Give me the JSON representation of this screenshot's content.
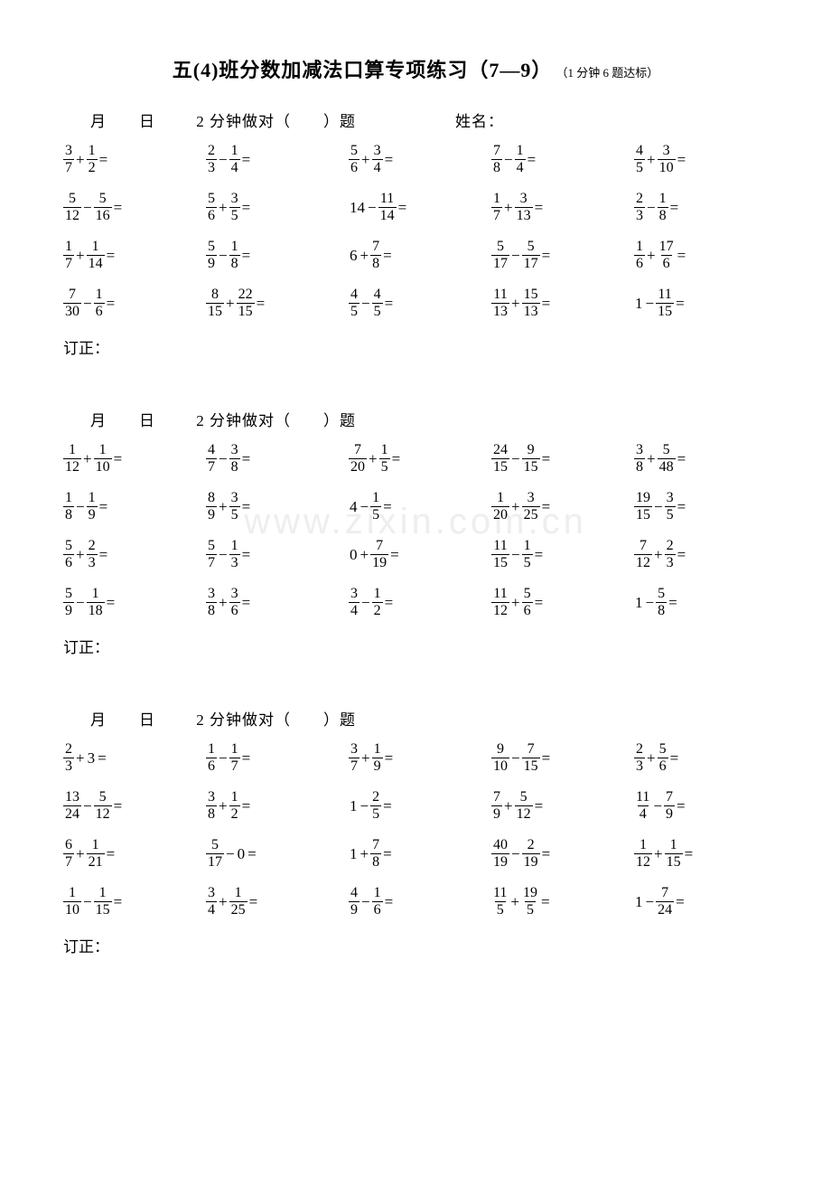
{
  "title_main": "五(4)班分数加减法口算专项练习（7—9）",
  "title_sub": "（1 分钟 6 题达标）",
  "header_left": "月　　日",
  "header_mid": "2 分钟做对（　　）题",
  "header_name": "姓名：",
  "dingzheng": "订正：",
  "watermark": "www.zixin.com.cn",
  "blocks": [
    {
      "show_name": true,
      "rows": [
        [
          "3/7 + 1/2",
          "2/3 - 1/4",
          "5/6 + 3/4",
          "7/8 - 1/4",
          "4/5 + 3/10"
        ],
        [
          "5/12 - 5/16",
          "5/6 + 3/5",
          "W14 - 11/14",
          "1/7 + 3/13",
          "2/3 - 1/8"
        ],
        [
          "1/7 + 1/14",
          "5/9 - 1/8",
          "W6 + 7/8",
          "5/17 - 5/17",
          "1/6 + 17/6"
        ],
        [
          "7/30 - 1/6",
          "8/15 + 22/15",
          "4/5 - 4/5",
          "11/13 + 15/13",
          "W1 - 11/15"
        ]
      ]
    },
    {
      "show_name": false,
      "rows": [
        [
          "1/12 + 1/10",
          "4/7 - 3/8",
          "7/20 + 1/5",
          "24/15 - 9/15",
          "3/8 + 5/48"
        ],
        [
          "1/8 - 1/9",
          "8/9 + 3/5",
          "W4 - 1/5",
          "1/20 + 3/25",
          "19/15 - 3/5"
        ],
        [
          "5/6 + 2/3",
          "5/7 - 1/3",
          "W0 + 7/19",
          "11/15 - 1/5",
          "7/12 + 2/3"
        ],
        [
          "5/9 - 1/18",
          "3/8 + 3/6",
          "3/4 - 1/2",
          "11/12 + 5/6",
          "W1 - 5/8"
        ]
      ]
    },
    {
      "show_name": false,
      "rows": [
        [
          "2/3 + W3",
          "1/6 - 1/7",
          "3/7 + 1/9",
          "9/10 - 7/15",
          "2/3 + 5/6"
        ],
        [
          "13/24 - 5/12",
          "3/8 + 1/2",
          "W1 - 2/5",
          "7/9 + 5/12",
          "11/4 - 7/9"
        ],
        [
          "6/7 + 1/21",
          "5/17 - W0",
          "W1 + 7/8",
          "40/19 - 2/19",
          "1/12 + 1/15"
        ],
        [
          "1/10 - 1/15",
          "3/4 + 1/25",
          "4/9 - 1/6",
          "11/5 + 19/5",
          "W1 - 7/24"
        ]
      ]
    }
  ]
}
